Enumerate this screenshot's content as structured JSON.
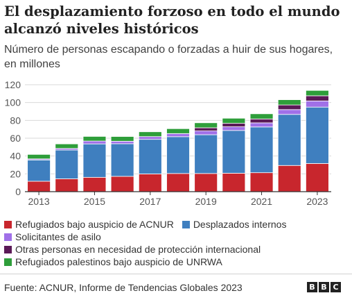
{
  "title": "El desplazamiento forzoso en todo el mundo alcanzó niveles históricos",
  "subtitle": "Número de personas escapando o forzadas a huir de sus hogares, en millones",
  "source": "Fuente: ACNUR, Informe de Tendencias Globales 2023",
  "logo": {
    "alt": "BBC",
    "letters": [
      "B",
      "B",
      "C"
    ]
  },
  "chart_data": {
    "type": "bar",
    "stacked": true,
    "categories": [
      "2013",
      "2014",
      "2015",
      "2016",
      "2017",
      "2018",
      "2019",
      "2020",
      "2021",
      "2022",
      "2023"
    ],
    "x_tick_labels": [
      "2013",
      "2015",
      "2017",
      "2019",
      "2021",
      "2023"
    ],
    "ylim": [
      0,
      120
    ],
    "y_ticks": [
      0,
      20,
      40,
      60,
      80,
      100,
      120
    ],
    "grid": true,
    "legend_position": "bottom",
    "series": [
      {
        "name": "Refugiados bajo auspicio de ACNUR",
        "color": "#c8262d",
        "values": [
          11.7,
          14.4,
          16.1,
          17.2,
          19.9,
          20.4,
          20.4,
          20.7,
          21.3,
          29.4,
          31.6
        ]
      },
      {
        "name": "Desplazados internos",
        "color": "#3f7fbf",
        "values": [
          23.9,
          32.3,
          37.5,
          36.6,
          38.8,
          41.3,
          43.5,
          48.0,
          51.3,
          57.3,
          63.3
        ]
      },
      {
        "name": "Solicitantes de asilo",
        "color": "#a070e8",
        "values": [
          1.2,
          1.8,
          3.2,
          2.8,
          3.1,
          3.5,
          4.2,
          4.1,
          4.6,
          5.4,
          6.9
        ]
      },
      {
        "name": "Otras personas en necesidad de protección internacional",
        "color": "#5b1a57",
        "values": [
          0,
          0,
          0,
          0,
          0,
          0,
          3.6,
          3.9,
          4.4,
          5.2,
          5.8
        ]
      },
      {
        "name": "Refugiados palestinos bajo auspicio de UNRWA",
        "color": "#2e9e3a",
        "values": [
          5.0,
          5.1,
          5.2,
          5.3,
          5.4,
          5.5,
          5.6,
          5.7,
          5.8,
          5.9,
          6.0
        ]
      }
    ]
  }
}
